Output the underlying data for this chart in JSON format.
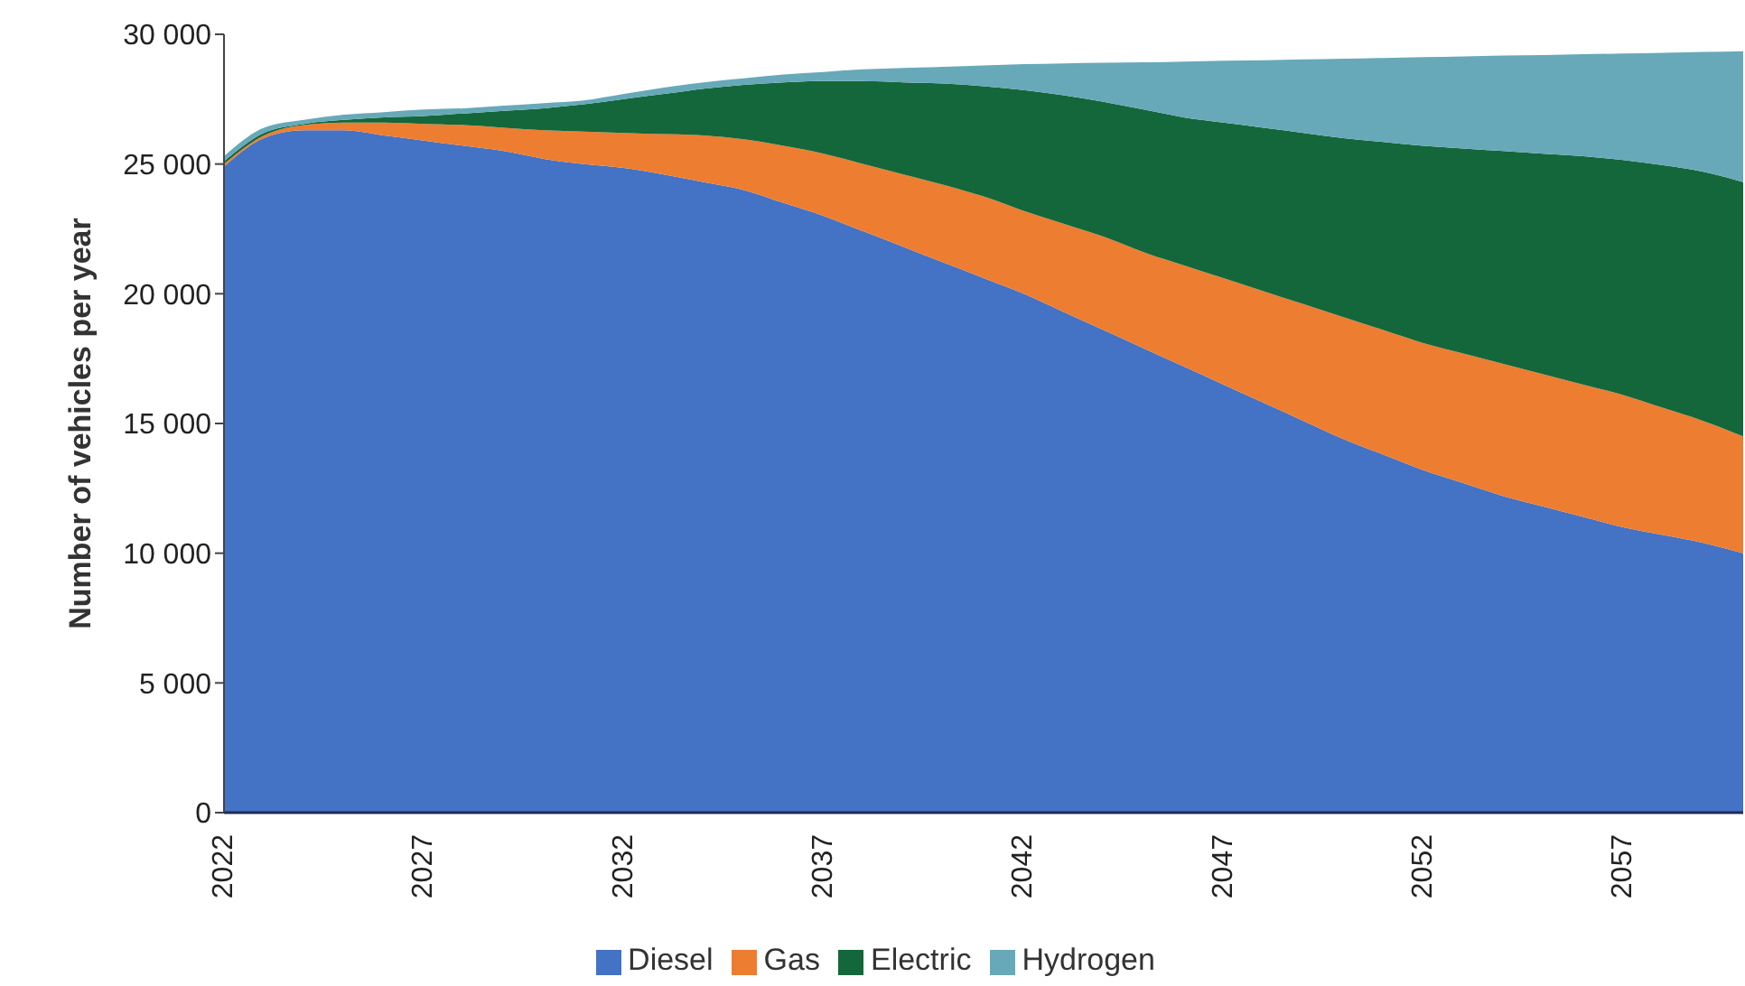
{
  "chart_data": {
    "type": "area",
    "stacked": true,
    "ylabel": "Number of vehicles per year",
    "categories": [
      "2022",
      null,
      null,
      null,
      null,
      "2027",
      null,
      null,
      null,
      null,
      "2032",
      null,
      null,
      null,
      null,
      "2037",
      null,
      null,
      null,
      null,
      "2042",
      null,
      null,
      null,
      null,
      "2047",
      null,
      null,
      null,
      null,
      "2052",
      null,
      null,
      null,
      null,
      "2057",
      null,
      null,
      null
    ],
    "series": [
      {
        "name": "Diesel",
        "color": "#4472c4",
        "values": [
          24900,
          26000,
          26300,
          26300,
          26100,
          25900,
          25700,
          25500,
          25200,
          25000,
          24850,
          24600,
          24300,
          24000,
          23500,
          23000,
          22400,
          21800,
          21200,
          20600,
          20000,
          19300,
          18600,
          17900,
          17200,
          16500,
          15800,
          15100,
          14400,
          13800,
          13200,
          12700,
          12200,
          11800,
          11400,
          11000,
          10700,
          10400,
          10000
        ]
      },
      {
        "name": "Gas",
        "color": "#ed7d31",
        "values": [
          100,
          100,
          200,
          300,
          500,
          650,
          800,
          900,
          1100,
          1250,
          1350,
          1550,
          1800,
          1950,
          2200,
          2400,
          2600,
          2800,
          3000,
          3150,
          3200,
          3400,
          3600,
          3700,
          3900,
          4100,
          4300,
          4500,
          4700,
          4800,
          4900,
          5000,
          5100,
          5100,
          5100,
          5100,
          4900,
          4700,
          4500
        ]
      },
      {
        "name": "Electric",
        "color": "#14673a",
        "values": [
          100,
          100,
          50,
          100,
          200,
          300,
          450,
          650,
          850,
          1050,
          1300,
          1550,
          1800,
          2100,
          2450,
          2800,
          3200,
          3550,
          3900,
          4250,
          4650,
          4950,
          5200,
          5500,
          5700,
          6000,
          6300,
          6600,
          6900,
          7250,
          7600,
          7900,
          8200,
          8500,
          8800,
          9050,
          9350,
          9600,
          9800
        ]
      },
      {
        "name": "Hydrogen",
        "color": "#67a9b9",
        "values": [
          200,
          200,
          150,
          200,
          200,
          250,
          200,
          200,
          200,
          150,
          200,
          250,
          250,
          250,
          300,
          350,
          450,
          550,
          650,
          800,
          1000,
          1230,
          1500,
          1820,
          2150,
          2380,
          2600,
          2830,
          3060,
          3240,
          3420,
          3550,
          3680,
          3800,
          3930,
          4110,
          4340,
          4620,
          5050
        ]
      }
    ],
    "ylim": [
      0,
      30000
    ],
    "yticks": [
      {
        "value": 0,
        "label": "0"
      },
      {
        "value": 5000,
        "label": "5 000"
      },
      {
        "value": 10000,
        "label": "10 000"
      },
      {
        "value": 15000,
        "label": "15 000"
      },
      {
        "value": 20000,
        "label": "20 000"
      },
      {
        "value": 25000,
        "label": "25 000"
      },
      {
        "value": 30000,
        "label": "30 000"
      }
    ],
    "grid": false,
    "legend": "bottom"
  }
}
